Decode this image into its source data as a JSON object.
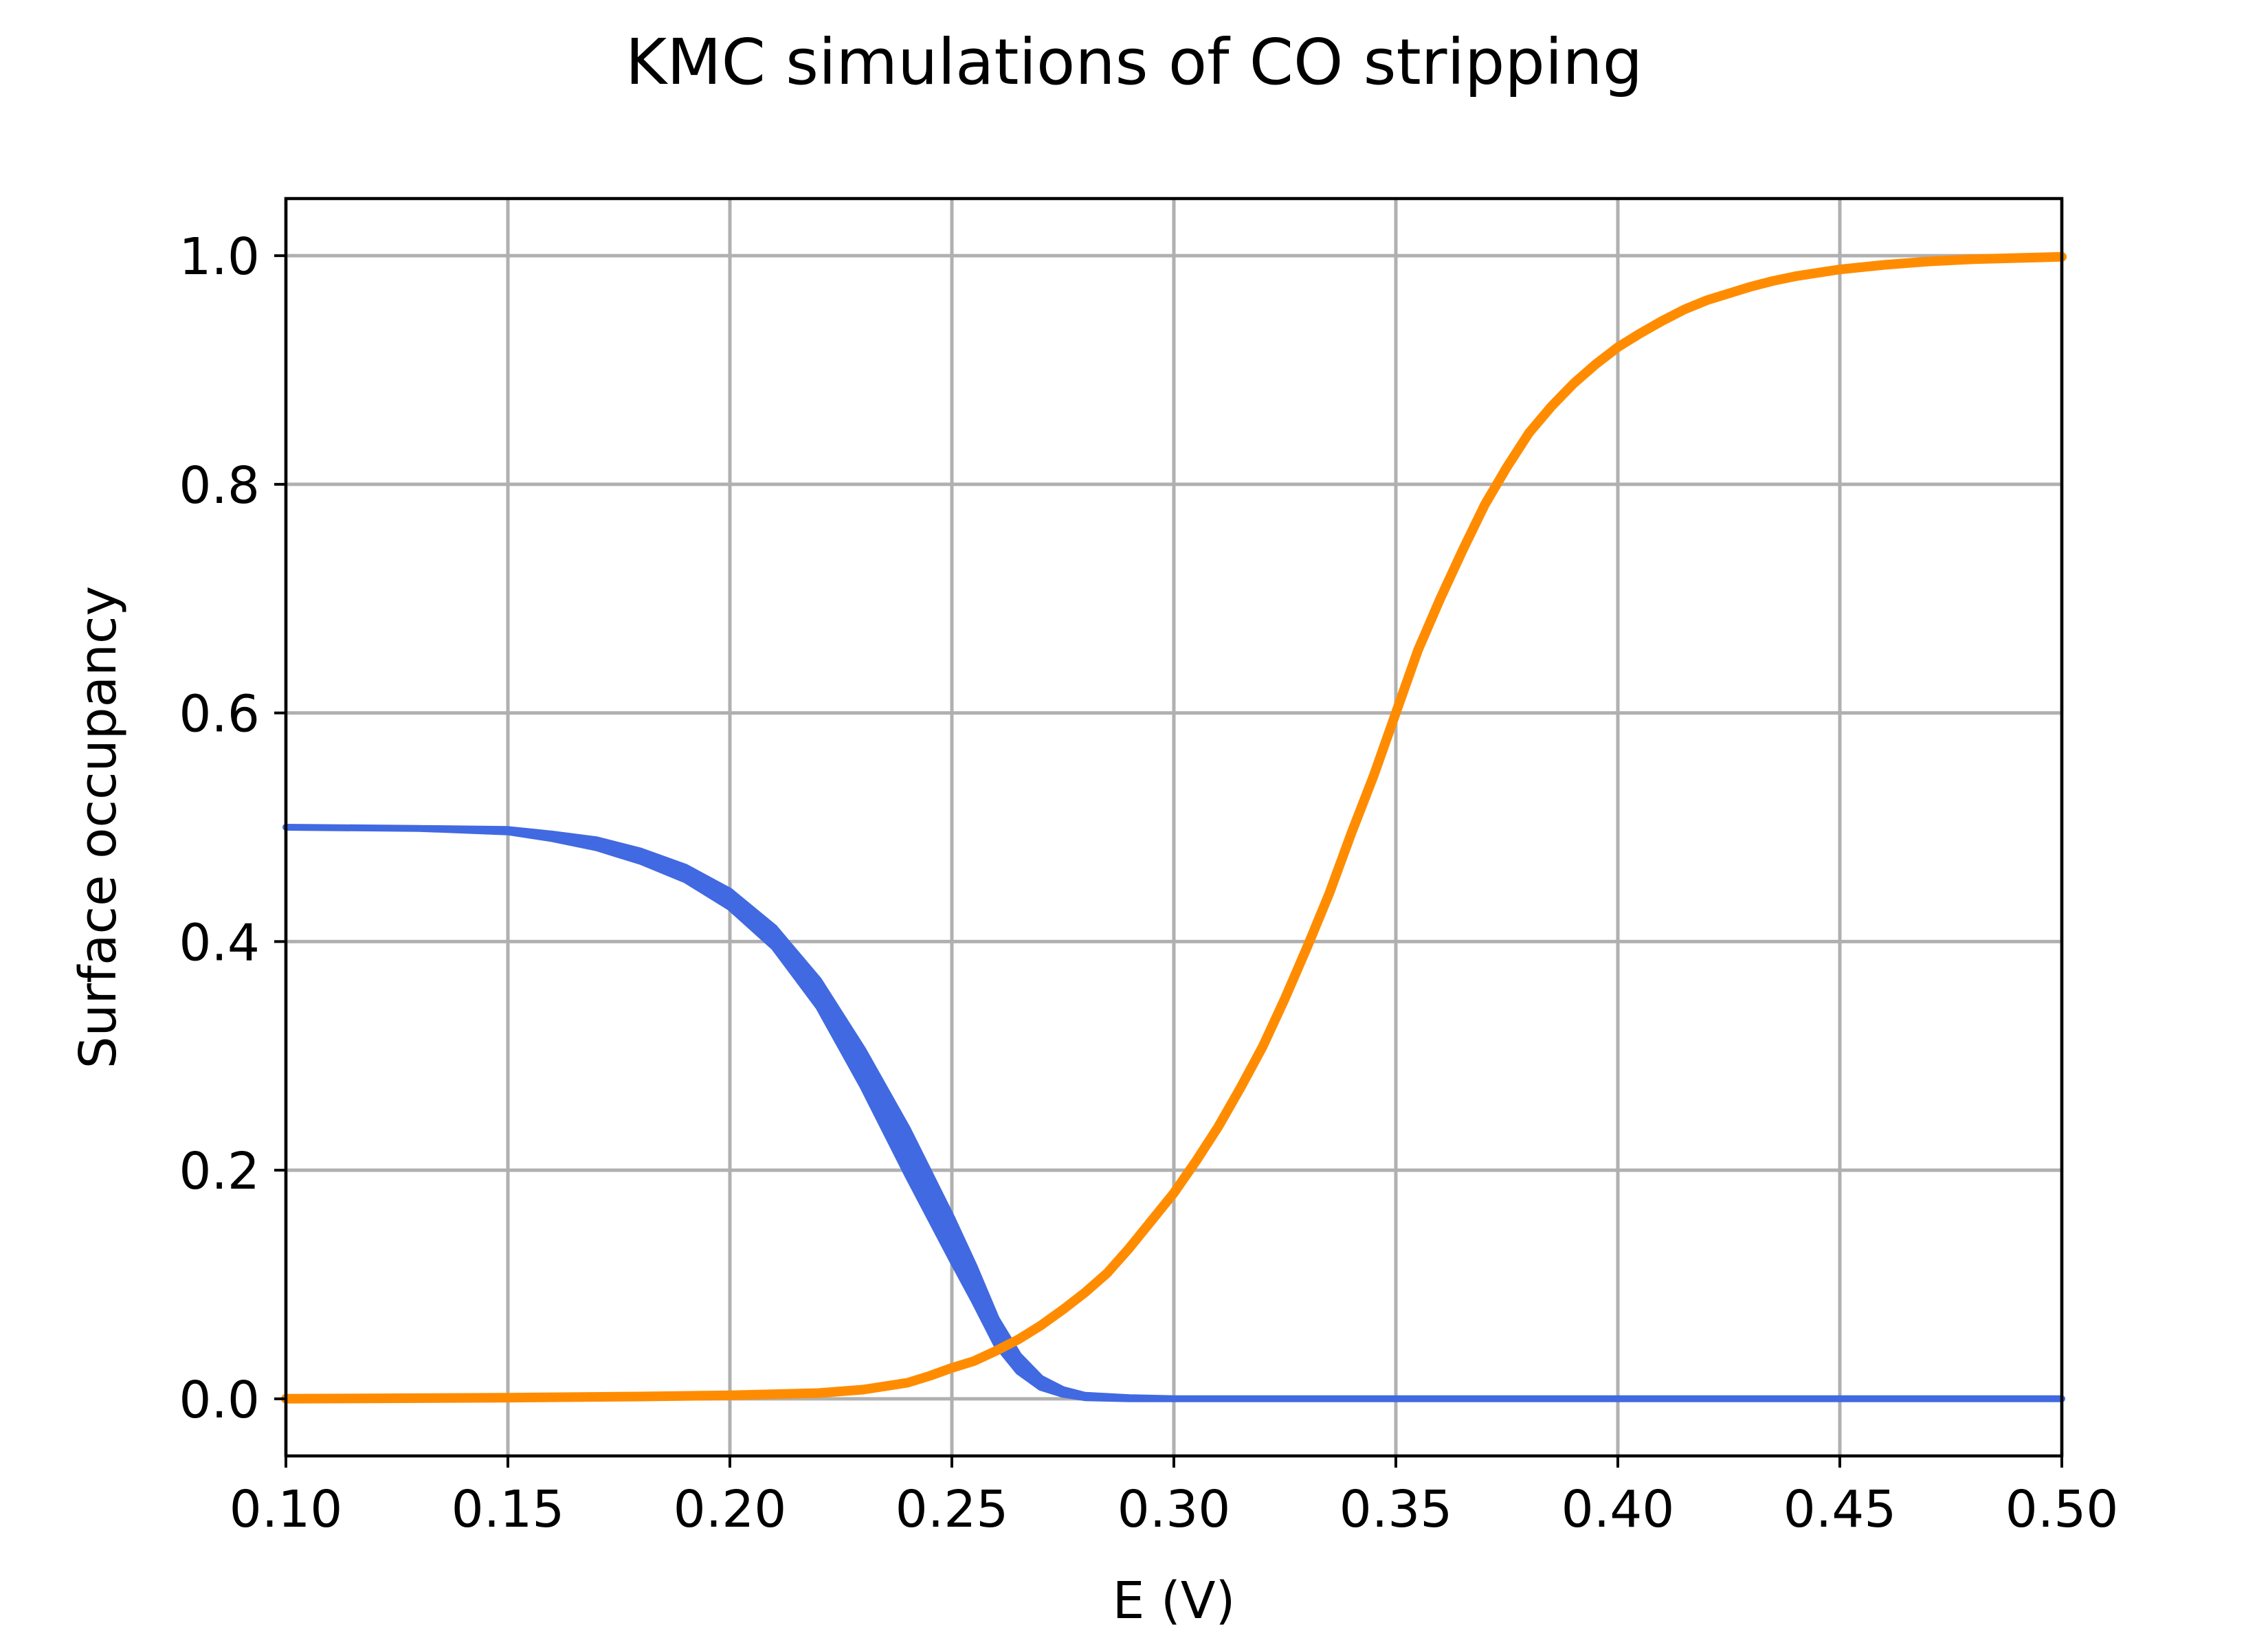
{
  "chart_data": {
    "type": "line",
    "title": "KMC simulations of CO stripping",
    "xlabel": "E (V)",
    "ylabel": "Surface occupancy",
    "xlim": [
      0.1,
      0.5
    ],
    "ylim": [
      -0.05,
      1.05
    ],
    "xticks": [
      "0.10",
      "0.15",
      "0.20",
      "0.25",
      "0.30",
      "0.35",
      "0.40",
      "0.45",
      "0.50"
    ],
    "yticks": [
      "0.0",
      "0.2",
      "0.4",
      "0.6",
      "0.8",
      "1.0"
    ],
    "grid": true,
    "legend": "none",
    "series": [
      {
        "color": "#4169e1",
        "band": true,
        "x": [
          0.1,
          0.13,
          0.15,
          0.16,
          0.17,
          0.18,
          0.19,
          0.2,
          0.21,
          0.22,
          0.23,
          0.24,
          0.25,
          0.255,
          0.26,
          0.265,
          0.27,
          0.275,
          0.28,
          0.29,
          0.3,
          0.35,
          0.4,
          0.45,
          0.5
        ],
        "upper": [
          0.5,
          0.499,
          0.498,
          0.494,
          0.489,
          0.479,
          0.465,
          0.444,
          0.412,
          0.366,
          0.305,
          0.236,
          0.158,
          0.116,
          0.07,
          0.038,
          0.018,
          0.008,
          0.003,
          0.001,
          0.0,
          0.0,
          0.0,
          0.0,
          0.0
        ],
        "lower": [
          0.5,
          0.499,
          0.496,
          0.49,
          0.482,
          0.47,
          0.454,
          0.43,
          0.395,
          0.343,
          0.273,
          0.196,
          0.122,
          0.086,
          0.048,
          0.024,
          0.01,
          0.004,
          0.001,
          0.0,
          0.0,
          0.0,
          0.0,
          0.0,
          0.0
        ]
      },
      {
        "color": "#ff8c00",
        "band": false,
        "x": [
          0.1,
          0.15,
          0.18,
          0.2,
          0.22,
          0.23,
          0.24,
          0.245,
          0.25,
          0.255,
          0.26,
          0.265,
          0.27,
          0.275,
          0.28,
          0.285,
          0.29,
          0.295,
          0.3,
          0.305,
          0.31,
          0.315,
          0.32,
          0.325,
          0.33,
          0.335,
          0.34,
          0.345,
          0.35,
          0.355,
          0.36,
          0.365,
          0.37,
          0.375,
          0.38,
          0.385,
          0.39,
          0.395,
          0.4,
          0.405,
          0.41,
          0.415,
          0.42,
          0.425,
          0.43,
          0.435,
          0.44,
          0.445,
          0.45,
          0.46,
          0.47,
          0.48,
          0.49,
          0.5
        ],
        "y": [
          0.0,
          0.001,
          0.002,
          0.003,
          0.005,
          0.008,
          0.014,
          0.02,
          0.027,
          0.033,
          0.042,
          0.052,
          0.064,
          0.078,
          0.093,
          0.11,
          0.132,
          0.156,
          0.18,
          0.208,
          0.238,
          0.272,
          0.308,
          0.35,
          0.395,
          0.442,
          0.495,
          0.545,
          0.6,
          0.655,
          0.7,
          0.742,
          0.782,
          0.815,
          0.845,
          0.868,
          0.888,
          0.905,
          0.92,
          0.932,
          0.943,
          0.953,
          0.961,
          0.967,
          0.973,
          0.978,
          0.982,
          0.985,
          0.988,
          0.992,
          0.995,
          0.997,
          0.998,
          0.999
        ]
      }
    ]
  }
}
